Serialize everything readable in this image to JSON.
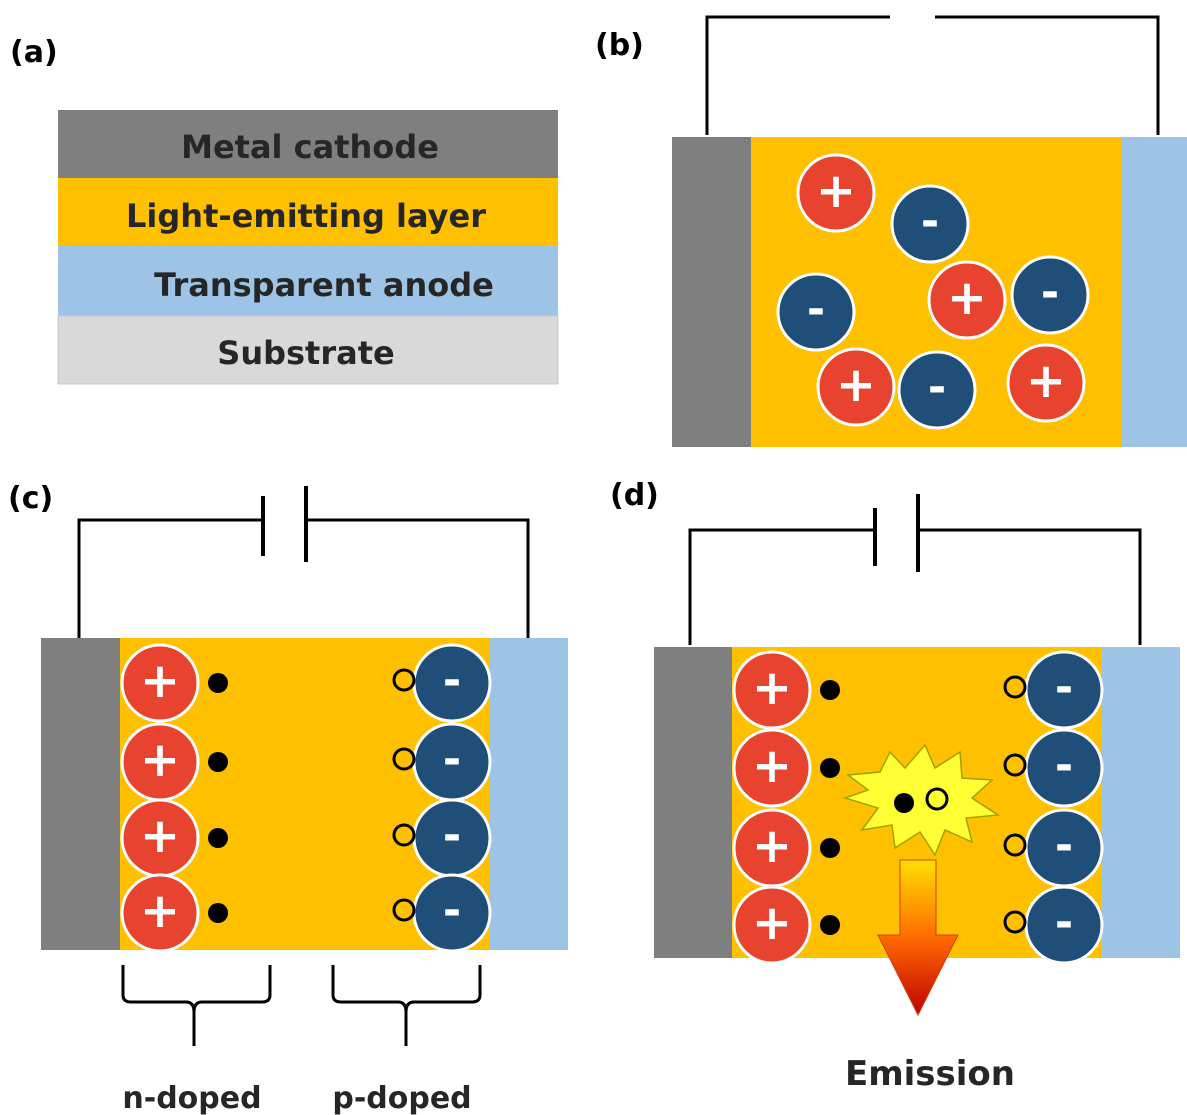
{
  "panels": {
    "a": {
      "label": "(a)",
      "layers": [
        {
          "name": "Metal cathode",
          "color": "#7f7f7f"
        },
        {
          "name": "Light-emitting layer",
          "color": "#ffc000"
        },
        {
          "name": "Transparent anode",
          "color": "#9dc3e6"
        },
        {
          "name": "Substrate",
          "color": "#d9d9d9"
        }
      ]
    },
    "b": {
      "label": "(b)"
    },
    "c": {
      "label": "(c)",
      "left_region_label": "n-doped",
      "right_region_label": "p-doped"
    },
    "d": {
      "label": "(d)",
      "emission_label": "Emission"
    }
  },
  "symbols": {
    "plus": "+",
    "minus": "-"
  },
  "colors": {
    "cathode": "#7f7f7f",
    "emitter": "#ffc000",
    "anode": "#9dc3e6",
    "cation": "#e8432e",
    "anion": "#1f4e79",
    "burst": "#ffff33",
    "wire": "#000000"
  }
}
